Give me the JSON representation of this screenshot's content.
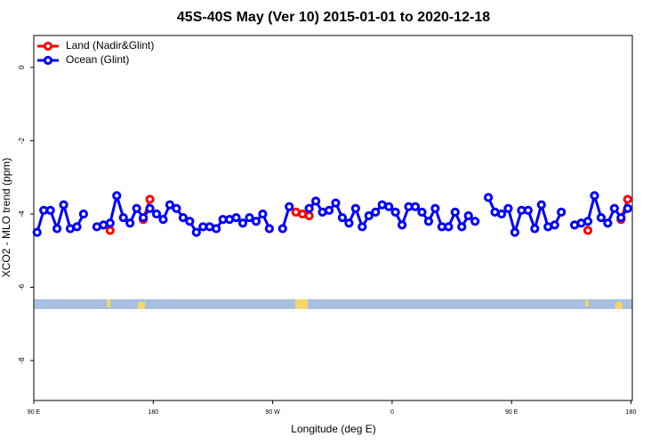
{
  "chart_data": {
    "type": "line",
    "title": "45S-40S May (Ver 10)   2015-01-01 to 2020-12-18",
    "x_label": "Longitude (deg E)",
    "y_label": "XCO2 - MLO trend (ppm)",
    "legend": "top-left",
    "xlim": [
      90,
      541
    ],
    "ylim": [
      -9.09,
      0.87
    ],
    "xticks": [
      {
        "value": 90,
        "label": "90 E"
      },
      180,
      {
        "value": 270,
        "label": "90 W"
      },
      {
        "value": 360,
        "label": "0"
      },
      {
        "value": 450,
        "label": "90 E"
      },
      {
        "value": 540,
        "label": "180"
      }
    ],
    "yticks": [
      0,
      -2,
      -4,
      -6,
      -8
    ],
    "x": [
      92.5,
      97.5,
      102.5,
      107.5,
      112.5,
      117.5,
      122.5,
      127.5,
      132.5,
      137.5,
      142.5,
      147.5,
      152.5,
      157.5,
      162.5,
      167.5,
      172.5,
      177.5,
      182.5,
      187.5,
      192.5,
      197.5,
      202.5,
      207.5,
      212.5,
      217.5,
      222.5,
      227.5,
      232.5,
      237.5,
      242.5,
      247.5,
      252.5,
      257.5,
      262.5,
      267.5,
      272.5,
      277.5,
      282.5,
      287.5,
      292.5,
      297.5,
      302.5,
      307.5,
      312.5,
      317.5,
      322.5,
      327.5,
      332.5,
      337.5,
      342.5,
      347.5,
      352.5,
      357.5,
      362.5,
      367.5,
      372.5,
      377.5,
      382.5,
      387.5,
      392.5,
      397.5,
      402.5,
      407.5,
      412.5,
      417.5,
      422.5,
      427.5,
      432.5,
      437.5,
      442.5,
      447.5,
      452.5,
      457.5,
      462.5,
      467.5,
      472.5,
      477.5,
      482.5,
      487.5,
      492.5,
      497.5,
      502.5,
      507.5,
      512.5,
      517.5,
      522.5,
      527.5,
      532.5,
      537.5
    ],
    "series": [
      {
        "name": "Land (Nadir&Glint)",
        "color": "#ff0000",
        "values": [
          null,
          null,
          null,
          null,
          null,
          null,
          null,
          null,
          null,
          null,
          null,
          -4.45,
          null,
          null,
          null,
          null,
          -4.15,
          -3.6,
          null,
          null,
          null,
          null,
          null,
          null,
          null,
          null,
          null,
          null,
          null,
          null,
          null,
          null,
          null,
          null,
          null,
          null,
          null,
          null,
          null,
          -3.95,
          -4.0,
          -4.05,
          null,
          null,
          null,
          null,
          null,
          null,
          null,
          null,
          null,
          null,
          null,
          null,
          null,
          null,
          null,
          null,
          null,
          null,
          null,
          null,
          null,
          null,
          null,
          null,
          null,
          null,
          null,
          null,
          null,
          null,
          null,
          null,
          null,
          null,
          null,
          null,
          null,
          null,
          null,
          null,
          null,
          -4.45,
          null,
          null,
          null,
          null,
          -4.15,
          -3.6
        ]
      },
      {
        "name": "Ocean (Glint)",
        "color": "#0000ff",
        "values": [
          -4.5,
          -3.9,
          -3.9,
          -4.4,
          -3.75,
          -4.4,
          -4.35,
          -4.0,
          null,
          -4.35,
          -4.3,
          -4.25,
          -3.5,
          -4.1,
          -4.25,
          -3.85,
          -4.1,
          -3.85,
          -4.0,
          -4.15,
          -3.75,
          -3.85,
          -4.1,
          -4.2,
          -4.5,
          -4.35,
          -4.35,
          -4.4,
          -4.15,
          -4.15,
          -4.1,
          -4.25,
          -4.1,
          -4.2,
          -4.0,
          -4.4,
          null,
          -4.4,
          -3.8,
          null,
          null,
          -3.85,
          -3.65,
          -3.95,
          -3.9,
          -3.7,
          -4.1,
          -4.25,
          -3.85,
          -4.35,
          -4.05,
          -3.95,
          -3.75,
          -3.8,
          -3.95,
          -4.3,
          -3.8,
          -3.8,
          -3.95,
          -4.2,
          -3.85,
          -4.35,
          -4.35,
          -3.95,
          -4.35,
          -4.05,
          -4.2,
          null,
          -3.55,
          -3.95,
          -4.0,
          -3.85,
          -4.5,
          -3.9,
          -3.9,
          -4.4,
          -3.75,
          -4.35,
          -4.3,
          -3.95,
          null,
          -4.3,
          -4.25,
          -4.2,
          -3.5,
          -4.1,
          -4.25,
          -3.85,
          -4.1,
          -3.85
        ]
      }
    ]
  }
}
